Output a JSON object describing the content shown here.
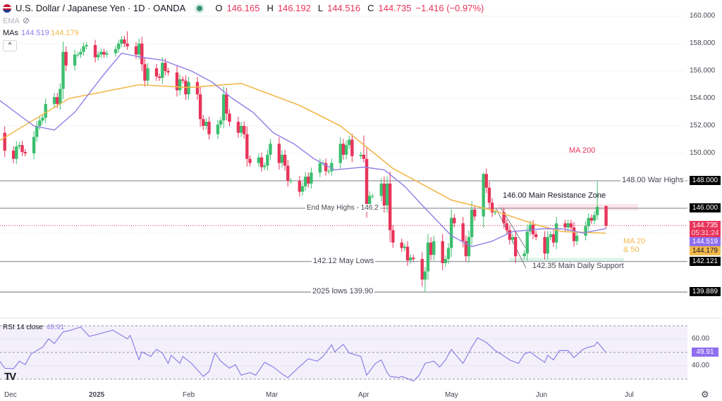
{
  "header": {
    "title": "U.S. Dollar / Japanese Yen · 1D · OANDA",
    "o_label": "O",
    "o": "146.165",
    "h_label": "H",
    "h": "146.192",
    "l_label": "L",
    "l": "144.516",
    "c_label": "C",
    "c": "144.735",
    "change": "−1.416 (−0.97%)"
  },
  "indicators": {
    "ema_label": "EMA",
    "mas_label": "MAs",
    "ma20_value": "144.519",
    "ma50_value": "144.179",
    "collapse_icon": "chevron-up"
  },
  "colors": {
    "up": "#3cbf6f",
    "down": "#e8345a",
    "ma20": "#8f7ee6",
    "ma50": "#f2b84b",
    "rsi": "#8f7ee6",
    "resistance_zone": "#fbdde4",
    "support_zone": "#dcf5e6"
  },
  "annotations": {
    "ma200": "MA 200",
    "war_highs": "148.00 War Highs",
    "resistance": "146.00 Main Resistance Zone",
    "end_may_highs": "End May Highs - 146.2",
    "may_lows": "142.12 May Lows",
    "daily_support": "142.35 Main Daily Support",
    "lows_2025": "2025 lows 139.90",
    "ma20_50_line1": "MA 20",
    "ma20_50_line2": "& 50"
  },
  "price_axis": {
    "ticks": [
      "160.000",
      "158.000",
      "156.000",
      "154.000",
      "152.000",
      "150.000"
    ],
    "levels": {
      "war_highs": "148.000",
      "resistance": "146.000",
      "may_lows": "142.121",
      "lows_2025": "139.889"
    },
    "last_price": "144.735",
    "countdown": "05:31:24",
    "ma20": "144.519",
    "ma50": "144.179"
  },
  "rsi": {
    "label": "RSI 14 close",
    "value": "49.91",
    "ticks": [
      "60.00",
      "40.00"
    ]
  },
  "time_axis": [
    "Dec",
    "2025",
    "Feb",
    "Mar",
    "Apr",
    "May",
    "Jun",
    "Jul"
  ],
  "chart_data": [
    {
      "type": "candlestick",
      "ylim": [
        139,
        161
      ],
      "first_open": 151.5,
      "weeks": [
        {
          "week_of": "2024-11-29",
          "closes": [
            150.2
          ]
        },
        {
          "week_of": "2024-12-02",
          "closes": [
            149.6,
            150.5,
            150.6,
            150.1,
            150.0
          ]
        },
        {
          "week_of": "2024-12-09",
          "closes": [
            151.2,
            152.0,
            152.4,
            152.6,
            153.6
          ]
        },
        {
          "week_of": "2024-12-16",
          "closes": [
            154.1,
            153.6,
            154.7,
            157.4,
            156.4
          ]
        },
        {
          "week_of": "2024-12-23",
          "closes": [
            157.2,
            157.2,
            157.4,
            157.8,
            157.9
          ]
        },
        {
          "week_of": "2024-12-30",
          "closes": [
            157.0,
            157.2,
            157.4,
            157.2,
            157.3
          ]
        },
        {
          "week_of": "2025-01-06",
          "closes": [
            157.6,
            158.0,
            158.3,
            158.0,
            157.8
          ]
        },
        {
          "week_of": "2025-01-13",
          "closes": [
            157.2,
            158.0,
            156.5,
            155.3,
            156.2
          ]
        },
        {
          "week_of": "2025-01-20",
          "closes": [
            155.6,
            155.5,
            156.6,
            156.0,
            155.9
          ]
        },
        {
          "week_of": "2025-01-27",
          "closes": [
            154.6,
            155.4,
            155.3,
            154.3,
            155.2
          ]
        },
        {
          "week_of": "2025-02-03",
          "closes": [
            154.3,
            152.5,
            152.0,
            152.3,
            151.4
          ]
        },
        {
          "week_of": "2025-02-10",
          "closes": [
            152.1,
            152.4,
            154.3,
            152.9,
            152.3
          ]
        },
        {
          "week_of": "2025-02-17",
          "closes": [
            151.5,
            152.0,
            151.4,
            149.6,
            149.3
          ]
        },
        {
          "week_of": "2025-02-24",
          "closes": [
            149.7,
            149.0,
            149.1,
            149.9,
            150.7
          ]
        },
        {
          "week_of": "2025-03-03",
          "closes": [
            149.3,
            149.9,
            149.1,
            148.0,
            148.0
          ]
        },
        {
          "week_of": "2025-03-10",
          "closes": [
            147.2,
            147.6,
            148.3,
            147.8,
            148.6
          ]
        },
        {
          "week_of": "2025-03-17",
          "closes": [
            149.3,
            149.3,
            148.7,
            148.7,
            149.3
          ]
        },
        {
          "week_of": "2025-03-24",
          "closes": [
            150.7,
            149.9,
            150.6,
            151.0,
            149.8
          ]
        },
        {
          "week_of": "2025-03-31",
          "closes": [
            149.9,
            149.6,
            146.2,
            146.9,
            146.9
          ]
        },
        {
          "week_of": "2025-04-07",
          "closes": [
            147.8,
            146.2,
            147.8,
            144.4,
            143.5
          ]
        },
        {
          "week_of": "2025-04-14",
          "closes": [
            143.1,
            143.2,
            142.2,
            142.4,
            142.3
          ]
        },
        {
          "week_of": "2025-04-21",
          "closes": [
            140.8,
            141.4,
            143.5,
            142.6,
            143.6
          ]
        },
        {
          "week_of": "2025-04-28",
          "closes": [
            142.0,
            142.3,
            143.1,
            145.3,
            144.9
          ]
        },
        {
          "week_of": "2025-05-05",
          "closes": [
            143.6,
            142.5,
            143.9,
            145.9,
            145.4
          ]
        },
        {
          "week_of": "2025-05-12",
          "closes": [
            148.5,
            147.5,
            146.4,
            145.7,
            145.7
          ]
        },
        {
          "week_of": "2025-05-19",
          "closes": [
            144.9,
            144.4,
            143.7,
            143.9,
            142.5
          ]
        },
        {
          "week_of": "2025-05-26",
          "closes": [
            142.7,
            144.3,
            144.8,
            144.1,
            143.9
          ]
        },
        {
          "week_of": "2025-06-02",
          "closes": [
            142.7,
            143.9,
            144.1,
            143.5,
            144.9
          ]
        },
        {
          "week_of": "2025-06-09",
          "closes": [
            144.6,
            144.9,
            144.6,
            143.6,
            144.0
          ]
        },
        {
          "week_of": "2025-06-16",
          "closes": [
            144.7,
            145.3,
            145.1,
            145.5,
            146.1
          ]
        }
      ],
      "last_bar": {
        "date": "2025-06-23",
        "open": 146.165,
        "high": 146.192,
        "low": 144.516,
        "close": 144.735
      },
      "notable_highs": [
        [
          "2025-01-10",
          158.9
        ],
        [
          "2025-05-12",
          148.6
        ],
        [
          "2025-06-20",
          147.95
        ],
        [
          "2025-04-01",
          151.3
        ]
      ],
      "notable_lows": [
        [
          "2025-04-22",
          139.89
        ]
      ],
      "ma20": [
        [
          "2024-11-27",
          153.9
        ],
        [
          "2024-12-09",
          152.0
        ],
        [
          "2024-12-16",
          151.7
        ],
        [
          "2024-12-23",
          153.0
        ],
        [
          "2025-01-01",
          155.5
        ],
        [
          "2025-01-08",
          157.3
        ],
        [
          "2025-01-15",
          157.0
        ],
        [
          "2025-01-22",
          156.8
        ],
        [
          "2025-02-01",
          156.0
        ],
        [
          "2025-02-08",
          155.2
        ],
        [
          "2025-02-15",
          154.0
        ],
        [
          "2025-02-22",
          153.0
        ],
        [
          "2025-03-01",
          151.5
        ],
        [
          "2025-03-08",
          150.7
        ],
        [
          "2025-03-15",
          149.6
        ],
        [
          "2025-03-22",
          148.8
        ],
        [
          "2025-04-01",
          149.0
        ],
        [
          "2025-04-08",
          148.8
        ],
        [
          "2025-04-15",
          147.6
        ],
        [
          "2025-04-22",
          146.0
        ],
        [
          "2025-05-01",
          144.0
        ],
        [
          "2025-05-08",
          143.2
        ],
        [
          "2025-05-15",
          143.6
        ],
        [
          "2025-05-22",
          144.3
        ],
        [
          "2025-06-01",
          144.5
        ],
        [
          "2025-06-08",
          144.5
        ],
        [
          "2025-06-15",
          144.2
        ],
        [
          "2025-06-23",
          144.519
        ]
      ],
      "ma50": [
        [
          "2024-11-27",
          150.9
        ],
        [
          "2024-12-21",
          154.0
        ],
        [
          "2025-01-14",
          155.0
        ],
        [
          "2025-01-31",
          154.8
        ],
        [
          "2025-02-18",
          155.1
        ],
        [
          "2025-03-10",
          153.5
        ],
        [
          "2025-03-24",
          152.0
        ],
        [
          "2025-04-11",
          148.9
        ],
        [
          "2025-05-01",
          146.6
        ],
        [
          "2025-05-16",
          145.8
        ],
        [
          "2025-05-30",
          144.8
        ],
        [
          "2025-06-08",
          144.3
        ],
        [
          "2025-06-23",
          144.179
        ]
      ],
      "horizontal_levels": [
        148.0,
        146.0,
        142.121,
        139.889
      ],
      "current_price": 144.735,
      "zones": {
        "resistance": [
          145.85,
          146.3
        ],
        "support": [
          142.12,
          142.38
        ]
      }
    },
    {
      "type": "line",
      "name": "RSI 14 close",
      "ylim": [
        30,
        70
      ],
      "bands": [
        70,
        50,
        30
      ],
      "grid": [
        60,
        40
      ],
      "points": [
        [
          "2024-11-27",
          44.4
        ],
        [
          "2024-11-29",
          38.2
        ],
        [
          "2024-12-02",
          37.9
        ],
        [
          "2024-12-04",
          43.5
        ],
        [
          "2024-12-06",
          40.9
        ],
        [
          "2024-12-08",
          48.8
        ],
        [
          "2024-12-12",
          54
        ],
        [
          "2024-12-14",
          60.2
        ],
        [
          "2024-12-16",
          56.7
        ],
        [
          "2024-12-19",
          65.4
        ],
        [
          "2024-12-21",
          66.3
        ],
        [
          "2024-12-25",
          69
        ],
        [
          "2024-12-28",
          62
        ],
        [
          "2024-12-31",
          63.7
        ],
        [
          "2025-01-05",
          66.7
        ],
        [
          "2025-01-10",
          60.2
        ],
        [
          "2025-01-11",
          62.8
        ],
        [
          "2025-01-14",
          44.4
        ],
        [
          "2025-01-15",
          50.5
        ],
        [
          "2025-01-18",
          47
        ],
        [
          "2025-01-20",
          52.3
        ],
        [
          "2025-01-22",
          49.6
        ],
        [
          "2025-01-24",
          41.8
        ],
        [
          "2025-01-25",
          47.9
        ],
        [
          "2025-01-28",
          41.8
        ],
        [
          "2025-01-29",
          47
        ],
        [
          "2025-02-01",
          41.8
        ],
        [
          "2025-02-05",
          32.1
        ],
        [
          "2025-02-07",
          35.6
        ],
        [
          "2025-02-09",
          49.6
        ],
        [
          "2025-02-11",
          43.5
        ],
        [
          "2025-02-14",
          38.2
        ],
        [
          "2025-02-16",
          40.9
        ],
        [
          "2025-02-18",
          33
        ],
        [
          "2025-02-21",
          34.9
        ],
        [
          "2025-02-23",
          33
        ],
        [
          "2025-02-26",
          42.6
        ],
        [
          "2025-03-01",
          39.1
        ],
        [
          "2025-03-04",
          33.9
        ],
        [
          "2025-03-06",
          31.2
        ],
        [
          "2025-03-09",
          37.4
        ],
        [
          "2025-03-13",
          45.3
        ],
        [
          "2025-03-16",
          43.5
        ],
        [
          "2025-03-18",
          47
        ],
        [
          "2025-03-21",
          55.8
        ],
        [
          "2025-03-22",
          50.5
        ],
        [
          "2025-03-25",
          56.1
        ],
        [
          "2025-03-27",
          49.6
        ],
        [
          "2025-03-31",
          47
        ],
        [
          "2025-04-02",
          33
        ],
        [
          "2025-04-05",
          41.8
        ],
        [
          "2025-04-07",
          44.4
        ],
        [
          "2025-04-09",
          34.9
        ],
        [
          "2025-04-10",
          32.1
        ],
        [
          "2025-04-13",
          31.2
        ],
        [
          "2025-04-14",
          32.1
        ],
        [
          "2025-04-16",
          30.4
        ],
        [
          "2025-04-18",
          28.6
        ],
        [
          "2025-04-20",
          33
        ],
        [
          "2025-04-22",
          41.8
        ],
        [
          "2025-04-25",
          43.5
        ],
        [
          "2025-04-27",
          39.1
        ],
        [
          "2025-04-29",
          44.4
        ],
        [
          "2025-05-01",
          52.3
        ],
        [
          "2025-05-03",
          47
        ],
        [
          "2025-05-05",
          41.8
        ],
        [
          "2025-05-08",
          54
        ],
        [
          "2025-05-10",
          61
        ],
        [
          "2025-05-13",
          57.5
        ],
        [
          "2025-05-16",
          51.4
        ],
        [
          "2025-05-18",
          48.8
        ],
        [
          "2025-05-21",
          44.4
        ],
        [
          "2025-05-24",
          41.8
        ],
        [
          "2025-05-26",
          48.8
        ],
        [
          "2025-05-28",
          50.5
        ],
        [
          "2025-05-30",
          47
        ],
        [
          "2025-06-02",
          42.6
        ],
        [
          "2025-06-03",
          47.9
        ],
        [
          "2025-06-05",
          44.4
        ],
        [
          "2025-06-07",
          51.4
        ],
        [
          "2025-06-10",
          51.4
        ],
        [
          "2025-06-12",
          46.1
        ],
        [
          "2025-06-15",
          52.3
        ],
        [
          "2025-06-17",
          54
        ],
        [
          "2025-06-19",
          54.9
        ],
        [
          "2025-06-20",
          57.9
        ],
        [
          "2025-06-23",
          49.91
        ]
      ]
    }
  ]
}
